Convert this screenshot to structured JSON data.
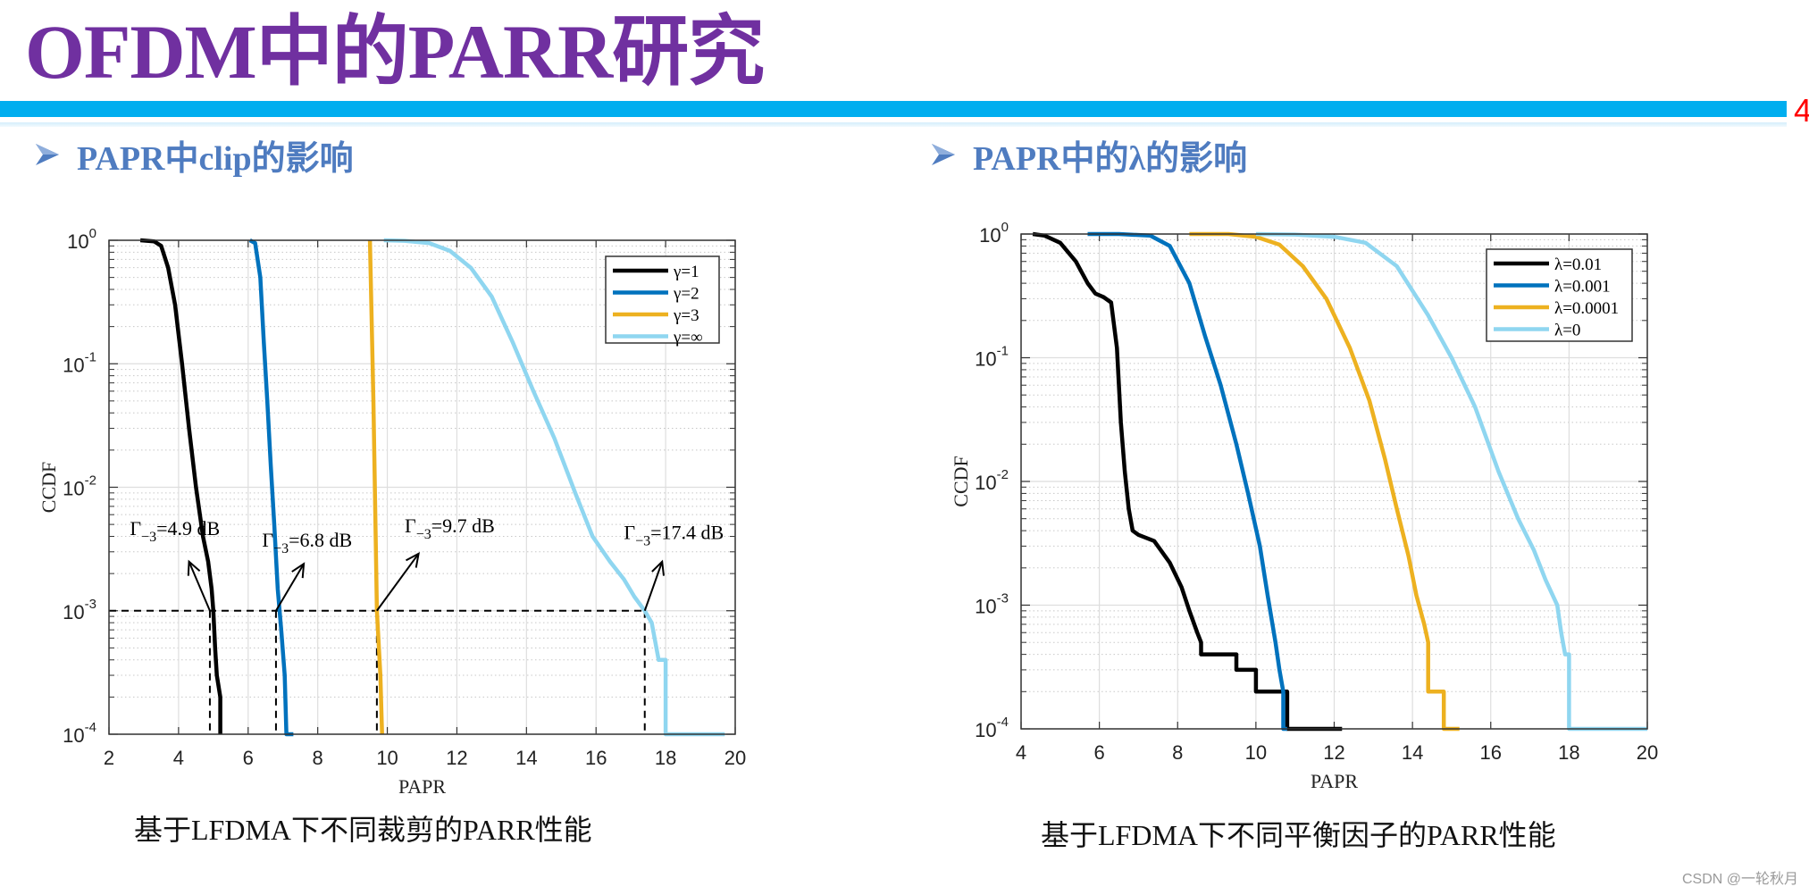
{
  "slide": {
    "title": "OFDM中的PARR研究",
    "page_number": "4",
    "colors": {
      "title": "#7030A0",
      "accent_bar": "#00AEEF",
      "subtitle": "#4F7CC0",
      "page_number": "#FF0000"
    }
  },
  "left_section": {
    "subtitle": "PAPR中clip的影响",
    "caption": "基于LFDMA下不同裁剪的PARR性能"
  },
  "right_section": {
    "subtitle": "PAPR中的λ的影响",
    "caption": "基于LFDMA下不同平衡因子的PARR性能"
  },
  "watermark": "CSDN @一轮秋月",
  "chart_data": [
    {
      "type": "line",
      "title": "",
      "xlabel": "PAPR",
      "ylabel": "CCDF",
      "xlim": [
        2,
        20
      ],
      "ylim": [
        0.0001,
        1
      ],
      "yscale": "log",
      "xticks": [
        2,
        4,
        6,
        8,
        10,
        12,
        14,
        16,
        18,
        20
      ],
      "yticks": [
        "10^0",
        "10^-1",
        "10^-2",
        "10^-3",
        "10^-4"
      ],
      "grid": true,
      "legend_position": "upper right",
      "series": [
        {
          "name": "γ=1",
          "color": "#000000",
          "x": [
            2.9,
            3.3,
            3.5,
            3.7,
            3.9,
            4.1,
            4.3,
            4.5,
            4.7,
            4.85,
            4.95,
            5.0,
            5.05,
            5.1,
            5.2,
            5.2
          ],
          "y": [
            1,
            0.98,
            0.9,
            0.6,
            0.3,
            0.1,
            0.03,
            0.01,
            0.004,
            0.0025,
            0.0015,
            0.001,
            0.0005,
            0.0003,
            0.0002,
            0.0001
          ]
        },
        {
          "name": "γ=2",
          "color": "#0072BD",
          "x": [
            6.05,
            6.2,
            6.35,
            6.45,
            6.55,
            6.65,
            6.75,
            6.85,
            6.95,
            7.05,
            7.1,
            7.3
          ],
          "y": [
            1,
            0.95,
            0.5,
            0.15,
            0.05,
            0.015,
            0.005,
            0.0015,
            0.0007,
            0.0003,
            0.0001,
            0.0001
          ]
        },
        {
          "name": "γ=3",
          "color": "#EDB120",
          "x": [
            9.5,
            9.6,
            9.7,
            9.8,
            9.85
          ],
          "y": [
            1,
            0.05,
            0.001,
            0.0003,
            0.0001
          ]
        },
        {
          "name": "γ=∞",
          "color": "#8FD6F0",
          "x": [
            9.9,
            10.5,
            11.2,
            11.8,
            12.4,
            13.0,
            13.6,
            14.2,
            14.8,
            15.4,
            15.9,
            16.4,
            16.8,
            17.1,
            17.4,
            17.6,
            17.8,
            18.0,
            18.0,
            19.7
          ],
          "y": [
            1,
            0.99,
            0.95,
            0.82,
            0.6,
            0.35,
            0.15,
            0.06,
            0.025,
            0.009,
            0.004,
            0.0025,
            0.0018,
            0.0013,
            0.001,
            0.0008,
            0.0004,
            0.0004,
            0.0001,
            0.0001
          ]
        }
      ],
      "reference_level": 0.001,
      "annotations": [
        {
          "text_main": "Γ",
          "text_sub": "−3",
          "text_value": "=4.9 dB",
          "x_at": 4.9,
          "label_x": 2.6,
          "label_y": 0.0041,
          "arrow_to_x": 4.3,
          "arrow_to_y": 0.0025
        },
        {
          "text_main": "Γ",
          "text_sub": "−3",
          "text_value": "=6.8 dB",
          "x_at": 6.8,
          "label_x": 6.4,
          "label_y": 0.0033,
          "arrow_to_x": 7.6,
          "arrow_to_y": 0.0024
        },
        {
          "text_main": "Γ",
          "text_sub": "−3",
          "text_value": "=9.7 dB",
          "x_at": 9.7,
          "label_x": 10.5,
          "label_y": 0.0043,
          "arrow_to_x": 10.9,
          "arrow_to_y": 0.0029
        },
        {
          "text_main": "Γ",
          "text_sub": "−3",
          "text_value": "=17.4 dB",
          "x_at": 17.4,
          "label_x": 16.8,
          "label_y": 0.0038,
          "arrow_to_x": 17.9,
          "arrow_to_y": 0.0025
        }
      ]
    },
    {
      "type": "line",
      "title": "",
      "xlabel": "PAPR",
      "ylabel": "CCDF",
      "xlim": [
        4,
        20
      ],
      "ylim": [
        0.0001,
        1
      ],
      "yscale": "log",
      "xticks": [
        4,
        6,
        8,
        10,
        12,
        14,
        16,
        18,
        20
      ],
      "yticks": [
        "10^0",
        "10^-1",
        "10^-2",
        "10^-3",
        "10^-4"
      ],
      "grid": true,
      "legend_position": "upper right",
      "series": [
        {
          "name": "λ=0.01",
          "color": "#000000",
          "x": [
            4.3,
            4.6,
            5.0,
            5.4,
            5.7,
            5.9,
            6.1,
            6.3,
            6.45,
            6.55,
            6.65,
            6.75,
            6.85,
            7.0,
            7.4,
            7.8,
            8.1,
            8.3,
            8.5,
            8.6,
            8.6,
            9.5,
            9.5,
            10.0,
            10.0,
            10.8,
            10.8,
            12.2
          ],
          "y": [
            1,
            0.97,
            0.85,
            0.6,
            0.4,
            0.33,
            0.31,
            0.28,
            0.12,
            0.03,
            0.012,
            0.006,
            0.004,
            0.0037,
            0.0033,
            0.0022,
            0.0014,
            0.0009,
            0.0006,
            0.0005,
            0.0004,
            0.0004,
            0.0003,
            0.0003,
            0.0002,
            0.0002,
            0.0001,
            0.0001
          ]
        },
        {
          "name": "λ=0.001",
          "color": "#0072BD",
          "x": [
            5.7,
            6.5,
            7.3,
            7.8,
            8.3,
            8.7,
            9.1,
            9.5,
            9.8,
            10.1,
            10.3,
            10.5,
            10.6,
            10.7,
            10.7,
            10.8
          ],
          "y": [
            1,
            1,
            0.97,
            0.8,
            0.4,
            0.15,
            0.06,
            0.02,
            0.008,
            0.003,
            0.0012,
            0.0005,
            0.0003,
            0.0002,
            0.0001,
            0.0001
          ]
        },
        {
          "name": "λ=0.0001",
          "color": "#EDB120",
          "x": [
            8.3,
            9.3,
            10.0,
            10.6,
            11.2,
            11.8,
            12.4,
            12.9,
            13.3,
            13.6,
            13.9,
            14.1,
            14.3,
            14.4,
            14.4,
            14.8,
            14.8,
            15.2
          ],
          "y": [
            1,
            1,
            0.95,
            0.82,
            0.55,
            0.3,
            0.12,
            0.045,
            0.015,
            0.006,
            0.0025,
            0.0012,
            0.0007,
            0.0005,
            0.0002,
            0.0002,
            0.0001,
            0.0001
          ]
        },
        {
          "name": "λ=0",
          "color": "#8FD6F0",
          "x": [
            10.0,
            11.0,
            12.0,
            12.8,
            13.6,
            14.4,
            15.0,
            15.6,
            16.2,
            16.7,
            17.1,
            17.4,
            17.7,
            17.8,
            17.9,
            18.0,
            18.0,
            20.0
          ],
          "y": [
            1,
            0.99,
            0.95,
            0.85,
            0.55,
            0.22,
            0.1,
            0.04,
            0.012,
            0.005,
            0.0028,
            0.0016,
            0.001,
            0.0006,
            0.0004,
            0.0004,
            0.0001,
            0.0001
          ]
        }
      ]
    }
  ]
}
